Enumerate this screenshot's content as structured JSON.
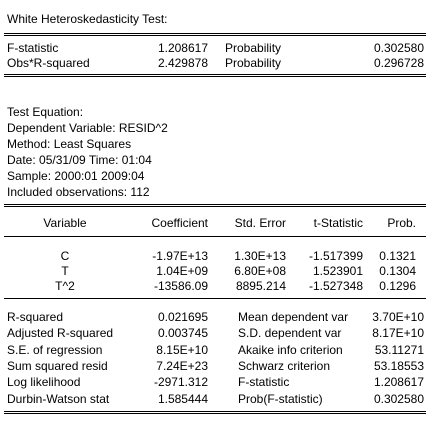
{
  "test_title": "White Heteroskedasticity Test:",
  "summary_stats": [
    {
      "label": "F-statistic",
      "value": "1.208617",
      "prob_label": "Probability",
      "prob_value": "0.302580"
    },
    {
      "label": "Obs*R-squared",
      "value": "2.429878",
      "prob_label": "Probability",
      "prob_value": "0.296728"
    }
  ],
  "test_equation": [
    "Test Equation:",
    "Dependent Variable: RESID^2",
    "Method: Least Squares",
    "Date: 05/31/09   Time: 01:04",
    "Sample: 2000:01 2009:04",
    "Included observations: 112"
  ],
  "coef_headers": [
    "Variable",
    "Coefficient",
    "Std. Error",
    "t-Statistic",
    "Prob."
  ],
  "coef_rows": [
    [
      "C",
      "-1.97E+13",
      "1.30E+13",
      "-1.517399",
      "0.1321"
    ],
    [
      "T",
      "1.04E+09",
      "6.80E+08",
      "1.523901",
      "0.1304"
    ],
    [
      "T^2",
      "-13586.09",
      "8895.214",
      "-1.527348",
      "0.1296"
    ]
  ],
  "regression_stats": [
    {
      "l1": "R-squared",
      "v1": "0.021695",
      "l2": "Mean dependent var",
      "v2": "3.70E+10"
    },
    {
      "l1": "Adjusted R-squared",
      "v1": "0.003745",
      "l2": "S.D. dependent var",
      "v2": "8.17E+10"
    },
    {
      "l1": "S.E. of regression",
      "v1": "8.15E+10",
      "l2": "Akaike info criterion",
      "v2": "53.11271"
    },
    {
      "l1": "Sum squared resid",
      "v1": "7.24E+23",
      "l2": "Schwarz criterion",
      "v2": "53.18553"
    },
    {
      "l1": "Log likelihood",
      "v1": "-2971.312",
      "l2": "F-statistic",
      "v2": "1.208617"
    },
    {
      "l1": "Durbin-Watson stat",
      "v1": "1.585444",
      "l2": "Prob(F-statistic)",
      "v2": "0.302580"
    }
  ]
}
